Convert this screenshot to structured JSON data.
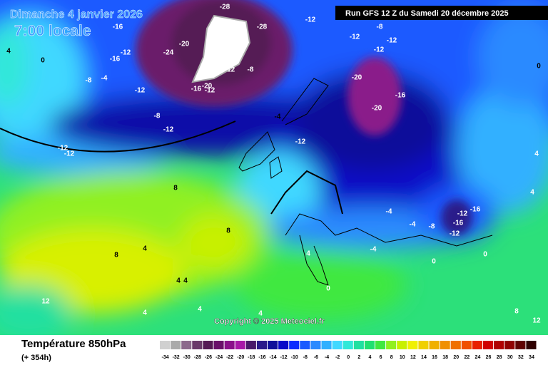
{
  "header": {
    "date": "Dimanche 4 janvier 2026",
    "time": "7:00 locale",
    "run": "Run GFS 12 Z du Samedi 20 décembre 2025"
  },
  "copyright": "Copyright © 2025 Meteociel.fr",
  "footer": {
    "title": "Température 850hPa",
    "lead": "(+ 354h)"
  },
  "legend": {
    "values": [
      -34,
      -32,
      -30,
      -28,
      -26,
      -24,
      -22,
      -20,
      -18,
      -16,
      -14,
      -12,
      -10,
      -8,
      -6,
      -4,
      -2,
      0,
      2,
      4,
      6,
      8,
      10,
      12,
      14,
      16,
      18,
      20,
      22,
      24,
      26,
      28,
      30,
      32,
      34
    ],
    "colors": [
      "#d0d0d0",
      "#aaaaaa",
      "#8c6a8c",
      "#6a3a6a",
      "#551a55",
      "#6a106a",
      "#8a108a",
      "#a818a8",
      "#4a1a6a",
      "#2a1a8a",
      "#10109a",
      "#0a0ac8",
      "#0a2aff",
      "#1a5aff",
      "#2a8aff",
      "#30b0ff",
      "#40d8ff",
      "#30e8d8",
      "#20e0a0",
      "#20e070",
      "#40e840",
      "#90f020",
      "#c8f000",
      "#f0f000",
      "#f0d000",
      "#f0b000",
      "#f09000",
      "#f07000",
      "#f05000",
      "#e82000",
      "#d00000",
      "#b00000",
      "#900000",
      "#600000",
      "#300000"
    ]
  },
  "map_labels": [
    "-28",
    "-16",
    "-28",
    "-12",
    "-12",
    "-8",
    "-12",
    "-12",
    "-24",
    "-20",
    "-16",
    "-12",
    "-8",
    "-4",
    "-12",
    "-16",
    "-20",
    "-12",
    "-12",
    "-8",
    "-20",
    "-20",
    "-16",
    "-8",
    "-12",
    "-4",
    "-12",
    "-12",
    "-12",
    "8",
    "8",
    "4",
    "8",
    "-4",
    "-4",
    "-8",
    "-12",
    "-16",
    "-16",
    "-12",
    "0",
    "0",
    "4",
    "0",
    "4",
    "4",
    "12",
    "4",
    "4",
    "4",
    "8",
    "12",
    "4",
    "4",
    "0",
    "0",
    "4",
    "-4"
  ]
}
